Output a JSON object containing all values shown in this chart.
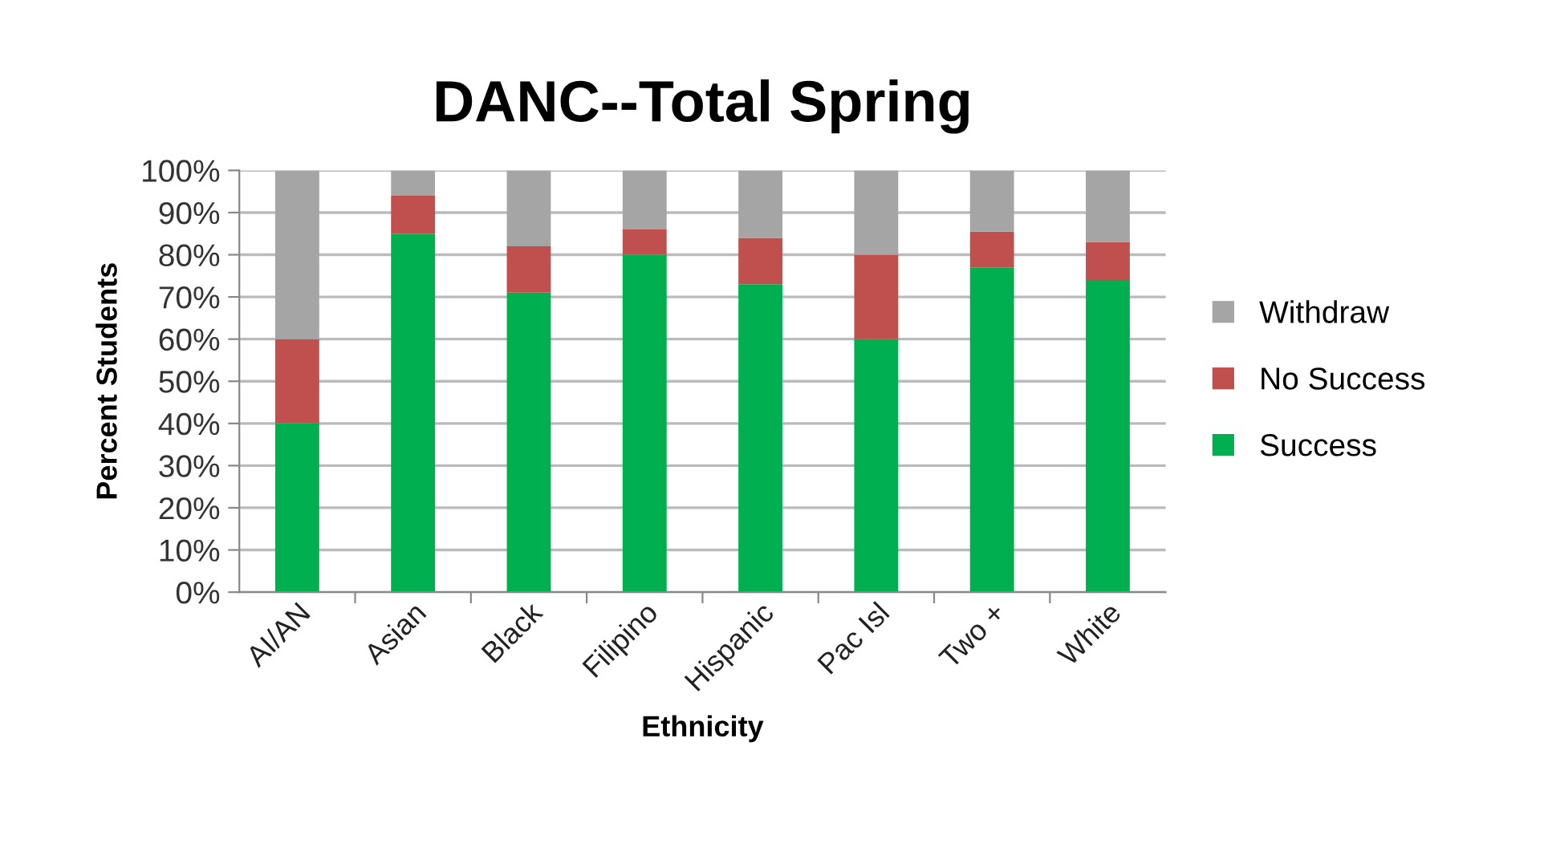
{
  "chart_data": {
    "type": "bar",
    "title": "DANC--Total Spring",
    "xlabel": "Ethnicity",
    "ylabel": "Percent Students",
    "categories": [
      "AI/AN",
      "Asian",
      "Black",
      "Filipino",
      "Hispanic",
      "Pac Isl",
      "Two +",
      "White"
    ],
    "stacked": true,
    "series": [
      {
        "name": "Success",
        "color": "#00b050",
        "values": [
          40,
          85,
          71,
          80,
          73,
          60,
          77,
          74
        ]
      },
      {
        "name": "No Success",
        "color": "#c0504d",
        "values": [
          20,
          9,
          11,
          6,
          11,
          20,
          8.5,
          9
        ]
      },
      {
        "name": "Withdraw",
        "color": "#a5a5a5",
        "values": [
          40,
          6,
          18,
          14,
          16,
          20,
          14.5,
          17
        ]
      }
    ],
    "ylim": [
      0,
      100
    ],
    "yticks": [
      {
        "value": 0,
        "label": "0%"
      },
      {
        "value": 10,
        "label": "10%"
      },
      {
        "value": 20,
        "label": "20%"
      },
      {
        "value": 30,
        "label": "30%"
      },
      {
        "value": 40,
        "label": "40%"
      },
      {
        "value": 50,
        "label": "50%"
      },
      {
        "value": 60,
        "label": "60%"
      },
      {
        "value": 70,
        "label": "70%"
      },
      {
        "value": 80,
        "label": "80%"
      },
      {
        "value": 90,
        "label": "90%"
      },
      {
        "value": 100,
        "label": "100%"
      }
    ],
    "grid": "y",
    "legend": "right"
  }
}
